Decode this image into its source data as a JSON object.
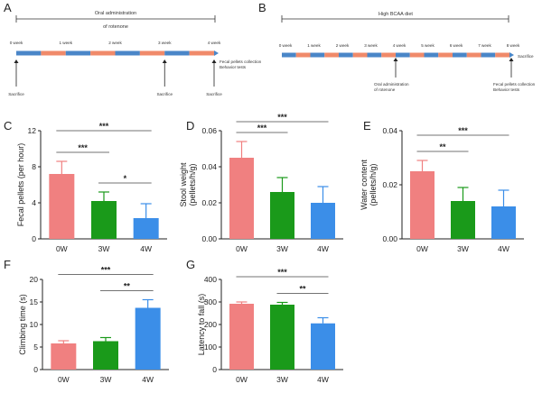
{
  "panel_letters": [
    "A",
    "B",
    "C",
    "D",
    "E",
    "F",
    "G"
  ],
  "timelines": {
    "A": {
      "header": "Oral  administration\nof rotenone",
      "weeks": [
        "0 week",
        "1 week",
        "2 week",
        "3 week",
        "4 week"
      ],
      "right_label": "Fecal pellets collection\nBehavior tests",
      "markers": [
        {
          "week": 0,
          "label": "Sacrifice"
        },
        {
          "week": 3,
          "label": "Sacrifice"
        },
        {
          "week": 4,
          "label": "Sacrifice"
        }
      ],
      "colors": {
        "blue": "#4a86c8",
        "orange": "#f08a6a"
      }
    },
    "B": {
      "header": "High BCAA diet",
      "weeks": [
        "0 week",
        "1 week",
        "2 week",
        "3 week",
        "4 week",
        "5 week",
        "6 week",
        "7 week",
        "8 week"
      ],
      "rotenone_label": "Oral  administration\nof rotenone",
      "right_label": "Fecal pellets collection\nBehavior tests",
      "end_label": "Sacrifice"
    }
  },
  "chart_data": [
    {
      "panel": "C",
      "type": "bar",
      "categories": [
        "0W",
        "3W",
        "4W"
      ],
      "values": [
        7.2,
        4.2,
        2.3
      ],
      "errors": [
        1.4,
        1.0,
        1.6
      ],
      "colors": [
        "#f08080",
        "#1a9a1a",
        "#3b8ee8"
      ],
      "ylabel": "Fecal pellets (per hour)",
      "ylim": [
        0,
        12
      ],
      "yticks": [
        "0",
        "4",
        "8",
        "12"
      ],
      "sig": [
        {
          "from": 0,
          "to": 1,
          "label": "***"
        },
        {
          "from": 0,
          "to": 2,
          "label": "***"
        },
        {
          "from": 1,
          "to": 2,
          "label": "*"
        }
      ]
    },
    {
      "panel": "D",
      "type": "bar",
      "categories": [
        "0W",
        "3W",
        "4W"
      ],
      "values": [
        0.045,
        0.026,
        0.02
      ],
      "errors": [
        0.009,
        0.008,
        0.009
      ],
      "colors": [
        "#f08080",
        "#1a9a1a",
        "#3b8ee8"
      ],
      "ylabel": "Stool weight\n(pellets/h/g)",
      "ylim": [
        0,
        0.06
      ],
      "yticks": [
        "0.00",
        "0.02",
        "0.04",
        "0.06"
      ],
      "sig": [
        {
          "from": 0,
          "to": 1,
          "label": "***"
        },
        {
          "from": 0,
          "to": 2,
          "label": "***"
        }
      ]
    },
    {
      "panel": "E",
      "type": "bar",
      "categories": [
        "0W",
        "3W",
        "4W"
      ],
      "values": [
        0.025,
        0.014,
        0.012
      ],
      "errors": [
        0.004,
        0.005,
        0.006
      ],
      "colors": [
        "#f08080",
        "#1a9a1a",
        "#3b8ee8"
      ],
      "ylabel": "Water content\n(pellets/h/g)",
      "ylim": [
        0,
        0.04
      ],
      "yticks": [
        "0.00",
        "0.02",
        "0.04"
      ],
      "sig": [
        {
          "from": 0,
          "to": 1,
          "label": "**"
        },
        {
          "from": 0,
          "to": 2,
          "label": "***"
        }
      ]
    },
    {
      "panel": "F",
      "type": "bar",
      "categories": [
        "0W",
        "3W",
        "4W"
      ],
      "values": [
        5.8,
        6.3,
        13.7
      ],
      "errors": [
        0.6,
        0.8,
        1.8
      ],
      "colors": [
        "#f08080",
        "#1a9a1a",
        "#3b8ee8"
      ],
      "ylabel": "Climbing time (s)",
      "ylim": [
        0,
        20
      ],
      "yticks": [
        "0",
        "5",
        "10",
        "15",
        "20"
      ],
      "sig": [
        {
          "from": 0,
          "to": 2,
          "label": "***"
        },
        {
          "from": 1,
          "to": 2,
          "label": "**"
        }
      ]
    },
    {
      "panel": "G",
      "type": "bar",
      "categories": [
        "0W",
        "3W",
        "4W"
      ],
      "values": [
        292,
        288,
        205
      ],
      "errors": [
        8,
        10,
        25
      ],
      "colors": [
        "#f08080",
        "#1a9a1a",
        "#3b8ee8"
      ],
      "ylabel": "Latency to fall (s)",
      "ylim": [
        0,
        400
      ],
      "yticks": [
        "0",
        "100",
        "200",
        "300",
        "400"
      ],
      "sig": [
        {
          "from": 0,
          "to": 2,
          "label": "***"
        },
        {
          "from": 1,
          "to": 2,
          "label": "**"
        }
      ]
    }
  ]
}
